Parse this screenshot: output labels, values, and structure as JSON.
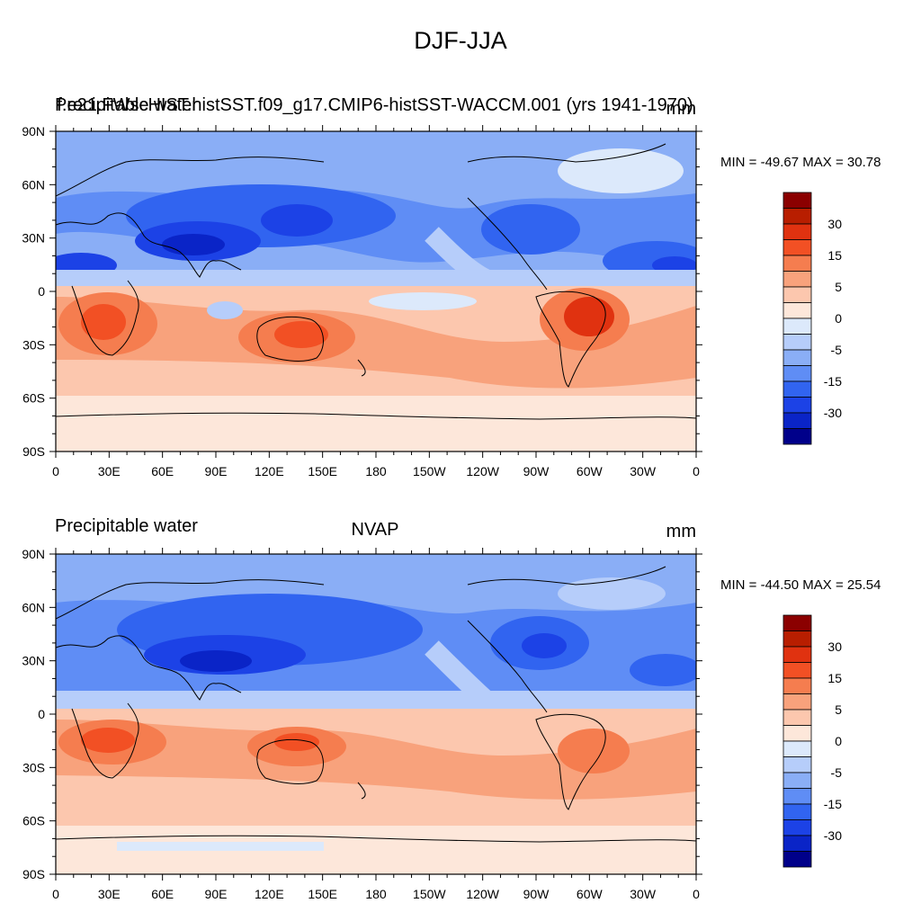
{
  "title": "DJF-JJA",
  "panels": [
    {
      "left_label": "Precipitable water",
      "center_label": "f.e21.FWscHIST.histSST.f09_g17.CMIP6-histSST-WACCM.001 (yrs 1941-1970)",
      "right_label": "mm",
      "stats": "MIN = -49.67 MAX =  30.78"
    },
    {
      "left_label": "Precipitable water",
      "center_label": "NVAP",
      "right_label": "mm",
      "stats": "MIN = -44.50 MAX =  25.54"
    }
  ],
  "axes": {
    "lat_ticks": [
      "90N",
      "60N",
      "30N",
      "0",
      "30S",
      "60S",
      "90S"
    ],
    "lon_ticks": [
      "0",
      "30E",
      "60E",
      "90E",
      "120E",
      "150E",
      "180",
      "150W",
      "120W",
      "90W",
      "60W",
      "30W",
      "0"
    ]
  },
  "colorbar": {
    "labels": [
      "30",
      "15",
      "5",
      "0",
      "-5",
      "-15",
      "-30"
    ],
    "colors": [
      "#8b0000",
      "#b81e00",
      "#e03210",
      "#f25024",
      "#f57d4f",
      "#f8a27c",
      "#fcc7ae",
      "#fde7da",
      "#dce9fb",
      "#b6cdfa",
      "#8aaef6",
      "#5f8df5",
      "#3164f0",
      "#1c42e6",
      "#0a24c7",
      "#00008a"
    ]
  },
  "map_colors": {
    "ocean_neutral": "#fde7da",
    "north_base": "#8aaef6",
    "south_base": "#fcc7ae",
    "coast": "#000000"
  }
}
